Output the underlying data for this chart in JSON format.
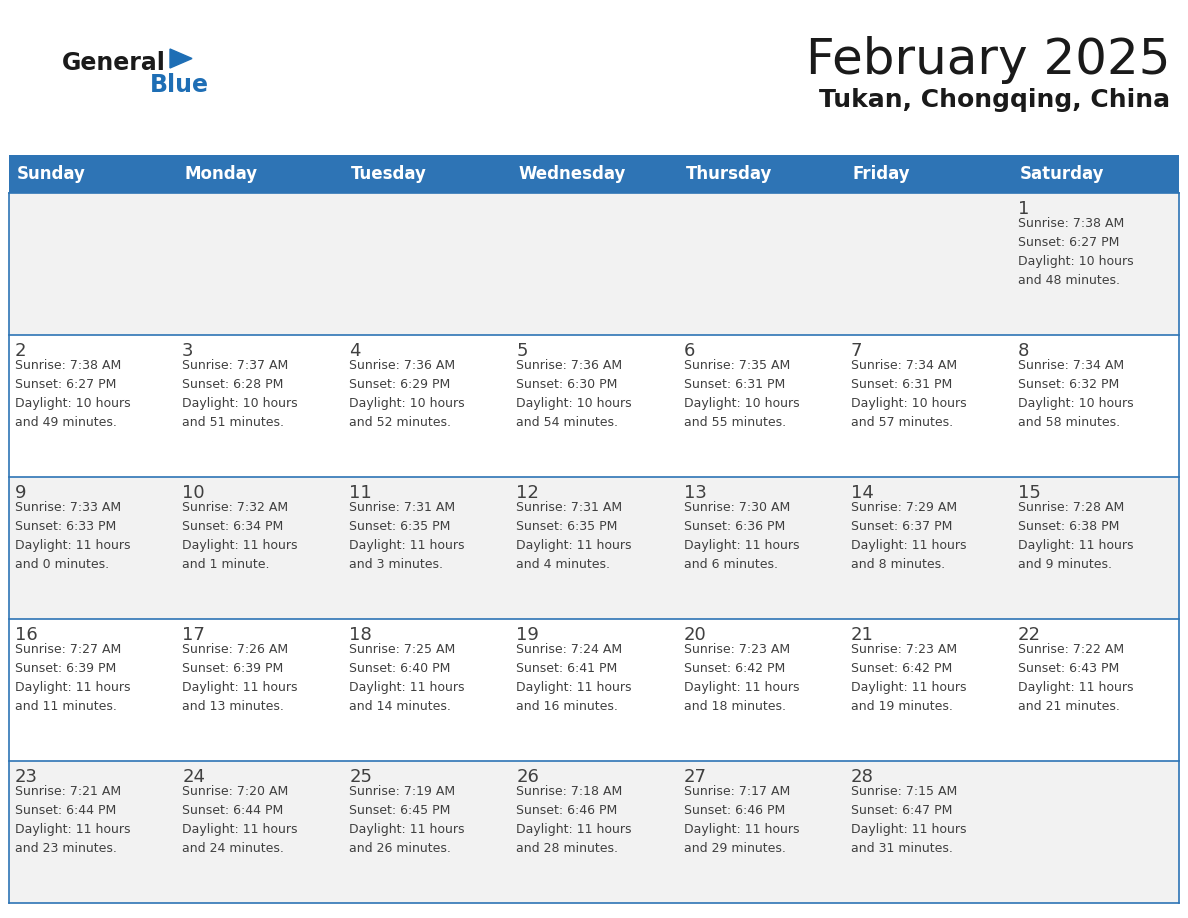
{
  "title": "February 2025",
  "subtitle": "Tukan, Chongqing, China",
  "days_of_week": [
    "Sunday",
    "Monday",
    "Tuesday",
    "Wednesday",
    "Thursday",
    "Friday",
    "Saturday"
  ],
  "header_bg": "#2E74B5",
  "header_text": "#FFFFFF",
  "row_bg_light": "#FFFFFF",
  "row_bg_gray": "#F2F2F2",
  "cell_border_color": "#2E74B5",
  "day_num_color": "#404040",
  "info_color": "#404040",
  "title_color": "#1a1a1a",
  "subtitle_color": "#1a1a1a",
  "logo_general_color": "#1a1a1a",
  "logo_blue_color": "#1e6eb5",
  "logo_triangle_color": "#1e6eb5",
  "calendar": [
    [
      {
        "day": null,
        "info": null
      },
      {
        "day": null,
        "info": null
      },
      {
        "day": null,
        "info": null
      },
      {
        "day": null,
        "info": null
      },
      {
        "day": null,
        "info": null
      },
      {
        "day": null,
        "info": null
      },
      {
        "day": 1,
        "info": "Sunrise: 7:38 AM\nSunset: 6:27 PM\nDaylight: 10 hours\nand 48 minutes."
      }
    ],
    [
      {
        "day": 2,
        "info": "Sunrise: 7:38 AM\nSunset: 6:27 PM\nDaylight: 10 hours\nand 49 minutes."
      },
      {
        "day": 3,
        "info": "Sunrise: 7:37 AM\nSunset: 6:28 PM\nDaylight: 10 hours\nand 51 minutes."
      },
      {
        "day": 4,
        "info": "Sunrise: 7:36 AM\nSunset: 6:29 PM\nDaylight: 10 hours\nand 52 minutes."
      },
      {
        "day": 5,
        "info": "Sunrise: 7:36 AM\nSunset: 6:30 PM\nDaylight: 10 hours\nand 54 minutes."
      },
      {
        "day": 6,
        "info": "Sunrise: 7:35 AM\nSunset: 6:31 PM\nDaylight: 10 hours\nand 55 minutes."
      },
      {
        "day": 7,
        "info": "Sunrise: 7:34 AM\nSunset: 6:31 PM\nDaylight: 10 hours\nand 57 minutes."
      },
      {
        "day": 8,
        "info": "Sunrise: 7:34 AM\nSunset: 6:32 PM\nDaylight: 10 hours\nand 58 minutes."
      }
    ],
    [
      {
        "day": 9,
        "info": "Sunrise: 7:33 AM\nSunset: 6:33 PM\nDaylight: 11 hours\nand 0 minutes."
      },
      {
        "day": 10,
        "info": "Sunrise: 7:32 AM\nSunset: 6:34 PM\nDaylight: 11 hours\nand 1 minute."
      },
      {
        "day": 11,
        "info": "Sunrise: 7:31 AM\nSunset: 6:35 PM\nDaylight: 11 hours\nand 3 minutes."
      },
      {
        "day": 12,
        "info": "Sunrise: 7:31 AM\nSunset: 6:35 PM\nDaylight: 11 hours\nand 4 minutes."
      },
      {
        "day": 13,
        "info": "Sunrise: 7:30 AM\nSunset: 6:36 PM\nDaylight: 11 hours\nand 6 minutes."
      },
      {
        "day": 14,
        "info": "Sunrise: 7:29 AM\nSunset: 6:37 PM\nDaylight: 11 hours\nand 8 minutes."
      },
      {
        "day": 15,
        "info": "Sunrise: 7:28 AM\nSunset: 6:38 PM\nDaylight: 11 hours\nand 9 minutes."
      }
    ],
    [
      {
        "day": 16,
        "info": "Sunrise: 7:27 AM\nSunset: 6:39 PM\nDaylight: 11 hours\nand 11 minutes."
      },
      {
        "day": 17,
        "info": "Sunrise: 7:26 AM\nSunset: 6:39 PM\nDaylight: 11 hours\nand 13 minutes."
      },
      {
        "day": 18,
        "info": "Sunrise: 7:25 AM\nSunset: 6:40 PM\nDaylight: 11 hours\nand 14 minutes."
      },
      {
        "day": 19,
        "info": "Sunrise: 7:24 AM\nSunset: 6:41 PM\nDaylight: 11 hours\nand 16 minutes."
      },
      {
        "day": 20,
        "info": "Sunrise: 7:23 AM\nSunset: 6:42 PM\nDaylight: 11 hours\nand 18 minutes."
      },
      {
        "day": 21,
        "info": "Sunrise: 7:23 AM\nSunset: 6:42 PM\nDaylight: 11 hours\nand 19 minutes."
      },
      {
        "day": 22,
        "info": "Sunrise: 7:22 AM\nSunset: 6:43 PM\nDaylight: 11 hours\nand 21 minutes."
      }
    ],
    [
      {
        "day": 23,
        "info": "Sunrise: 7:21 AM\nSunset: 6:44 PM\nDaylight: 11 hours\nand 23 minutes."
      },
      {
        "day": 24,
        "info": "Sunrise: 7:20 AM\nSunset: 6:44 PM\nDaylight: 11 hours\nand 24 minutes."
      },
      {
        "day": 25,
        "info": "Sunrise: 7:19 AM\nSunset: 6:45 PM\nDaylight: 11 hours\nand 26 minutes."
      },
      {
        "day": 26,
        "info": "Sunrise: 7:18 AM\nSunset: 6:46 PM\nDaylight: 11 hours\nand 28 minutes."
      },
      {
        "day": 27,
        "info": "Sunrise: 7:17 AM\nSunset: 6:46 PM\nDaylight: 11 hours\nand 29 minutes."
      },
      {
        "day": 28,
        "info": "Sunrise: 7:15 AM\nSunset: 6:47 PM\nDaylight: 11 hours\nand 31 minutes."
      },
      {
        "day": null,
        "info": null
      }
    ]
  ],
  "fig_width": 11.88,
  "fig_height": 9.18,
  "dpi": 100
}
